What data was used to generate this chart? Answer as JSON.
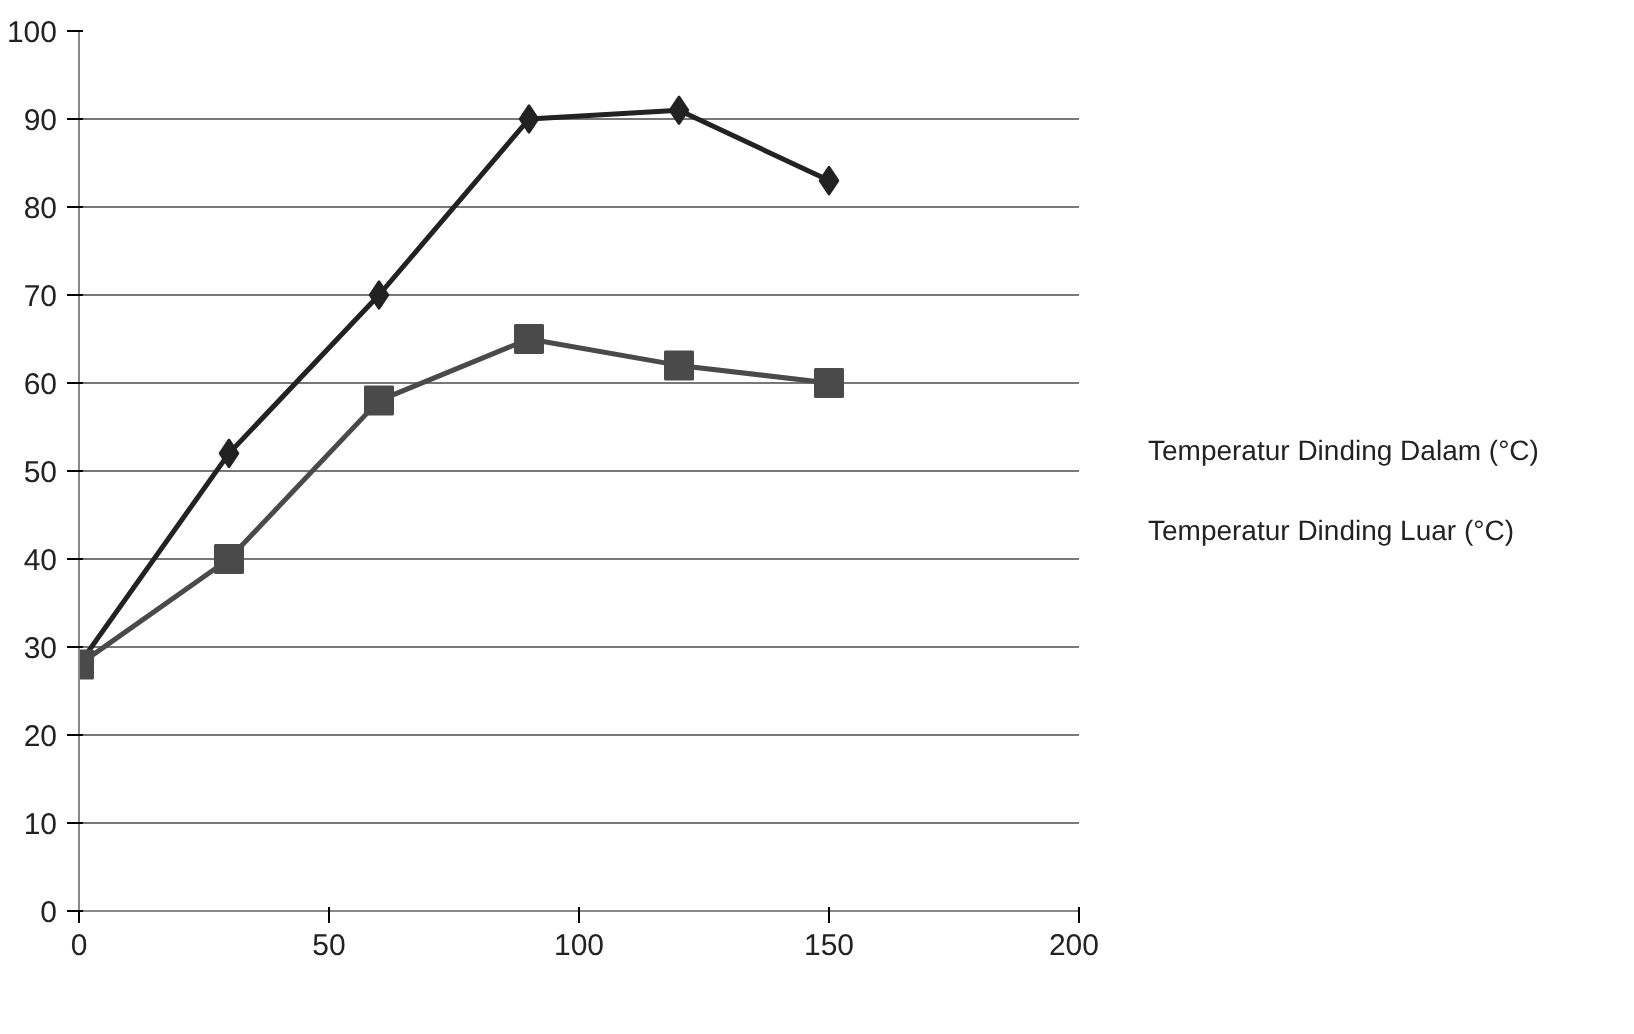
{
  "chart_data": {
    "type": "line",
    "x": [
      0,
      30,
      60,
      90,
      120,
      150
    ],
    "series": [
      {
        "name": "Temperatur Dinding Dalam (°C)",
        "color": "#222222",
        "marker": "diamond",
        "values": [
          28,
          52,
          70,
          90,
          91,
          83
        ]
      },
      {
        "name": "Temperatur Dinding Luar (°C)",
        "color": "#4a4a4a",
        "marker": "square",
        "values": [
          28,
          40,
          58,
          65,
          62,
          60
        ]
      }
    ],
    "xlim": [
      0,
      200
    ],
    "xticks": [
      0,
      50,
      100,
      150,
      200
    ],
    "ylim": [
      0,
      100
    ],
    "yticks": [
      0,
      10,
      20,
      30,
      40,
      50,
      60,
      70,
      80,
      90,
      100
    ],
    "grid": "y",
    "legend": "right",
    "line_style": "solid"
  }
}
